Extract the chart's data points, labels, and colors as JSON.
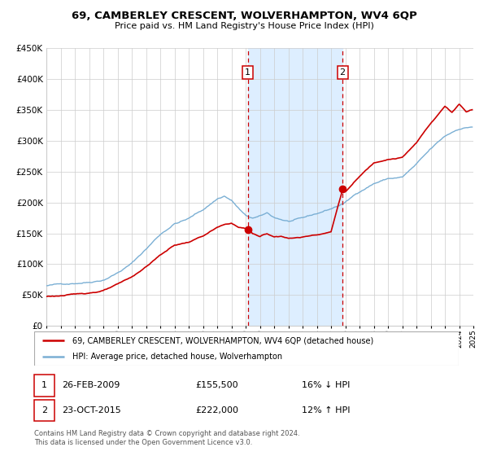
{
  "title": "69, CAMBERLEY CRESCENT, WOLVERHAMPTON, WV4 6QP",
  "subtitle": "Price paid vs. HM Land Registry's House Price Index (HPI)",
  "legend_line1": "69, CAMBERLEY CRESCENT, WOLVERHAMPTON, WV4 6QP (detached house)",
  "legend_line2": "HPI: Average price, detached house, Wolverhampton",
  "footnote1": "Contains HM Land Registry data © Crown copyright and database right 2024.",
  "footnote2": "This data is licensed under the Open Government Licence v3.0.",
  "sale1_date": "26-FEB-2009",
  "sale1_price": "£155,500",
  "sale1_hpi": "16% ↓ HPI",
  "sale2_date": "23-OCT-2015",
  "sale2_price": "£222,000",
  "sale2_hpi": "12% ↑ HPI",
  "sale1_x": 2009.15,
  "sale1_y": 155500,
  "sale2_x": 2015.81,
  "sale2_y": 222000,
  "vline1_x": 2009.15,
  "vline2_x": 2015.81,
  "shade_x1": 2009.15,
  "shade_x2": 2015.81,
  "red_color": "#cc0000",
  "blue_color": "#7aafd4",
  "shade_color": "#ddeeff",
  "background_color": "#ffffff",
  "grid_color": "#cccccc",
  "ylim": [
    0,
    450000
  ],
  "xlim_start": 1995,
  "xlim_end": 2025,
  "hpi_keypoints": [
    [
      1995.0,
      65000
    ],
    [
      1996.0,
      67000
    ],
    [
      1997.0,
      70000
    ],
    [
      1998.0,
      73000
    ],
    [
      1999.0,
      78000
    ],
    [
      2000.0,
      90000
    ],
    [
      2001.0,
      105000
    ],
    [
      2002.0,
      128000
    ],
    [
      2003.0,
      152000
    ],
    [
      2004.0,
      170000
    ],
    [
      2005.0,
      178000
    ],
    [
      2006.0,
      192000
    ],
    [
      2007.0,
      210000
    ],
    [
      2007.5,
      215000
    ],
    [
      2008.0,
      208000
    ],
    [
      2008.5,
      195000
    ],
    [
      2009.0,
      182000
    ],
    [
      2009.5,
      178000
    ],
    [
      2010.0,
      180000
    ],
    [
      2010.5,
      185000
    ],
    [
      2011.0,
      178000
    ],
    [
      2012.0,
      172000
    ],
    [
      2013.0,
      175000
    ],
    [
      2014.0,
      182000
    ],
    [
      2015.0,
      190000
    ],
    [
      2016.0,
      200000
    ],
    [
      2017.0,
      218000
    ],
    [
      2018.0,
      232000
    ],
    [
      2019.0,
      240000
    ],
    [
      2020.0,
      242000
    ],
    [
      2021.0,
      262000
    ],
    [
      2022.0,
      285000
    ],
    [
      2023.0,
      305000
    ],
    [
      2024.0,
      318000
    ],
    [
      2025.0,
      322000
    ]
  ],
  "prop_keypoints": [
    [
      1995.0,
      48000
    ],
    [
      1996.0,
      49500
    ],
    [
      1997.0,
      51000
    ],
    [
      1998.0,
      54000
    ],
    [
      1999.0,
      58000
    ],
    [
      2000.0,
      67000
    ],
    [
      2001.0,
      78000
    ],
    [
      2002.0,
      95000
    ],
    [
      2003.0,
      114000
    ],
    [
      2004.0,
      130000
    ],
    [
      2005.0,
      135000
    ],
    [
      2006.0,
      145000
    ],
    [
      2007.0,
      158000
    ],
    [
      2007.5,
      162000
    ],
    [
      2008.0,
      165000
    ],
    [
      2008.5,
      158000
    ],
    [
      2009.15,
      155500
    ],
    [
      2009.5,
      148000
    ],
    [
      2010.0,
      143000
    ],
    [
      2010.5,
      148000
    ],
    [
      2011.0,
      143000
    ],
    [
      2011.5,
      145000
    ],
    [
      2012.0,
      141000
    ],
    [
      2013.0,
      143000
    ],
    [
      2014.0,
      148000
    ],
    [
      2015.0,
      153000
    ],
    [
      2015.81,
      222000
    ],
    [
      2016.0,
      218000
    ],
    [
      2017.0,
      242000
    ],
    [
      2018.0,
      264000
    ],
    [
      2019.0,
      272000
    ],
    [
      2020.0,
      275000
    ],
    [
      2021.0,
      298000
    ],
    [
      2022.0,
      330000
    ],
    [
      2023.0,
      358000
    ],
    [
      2023.5,
      348000
    ],
    [
      2024.0,
      362000
    ],
    [
      2024.5,
      350000
    ],
    [
      2025.0,
      355000
    ]
  ]
}
